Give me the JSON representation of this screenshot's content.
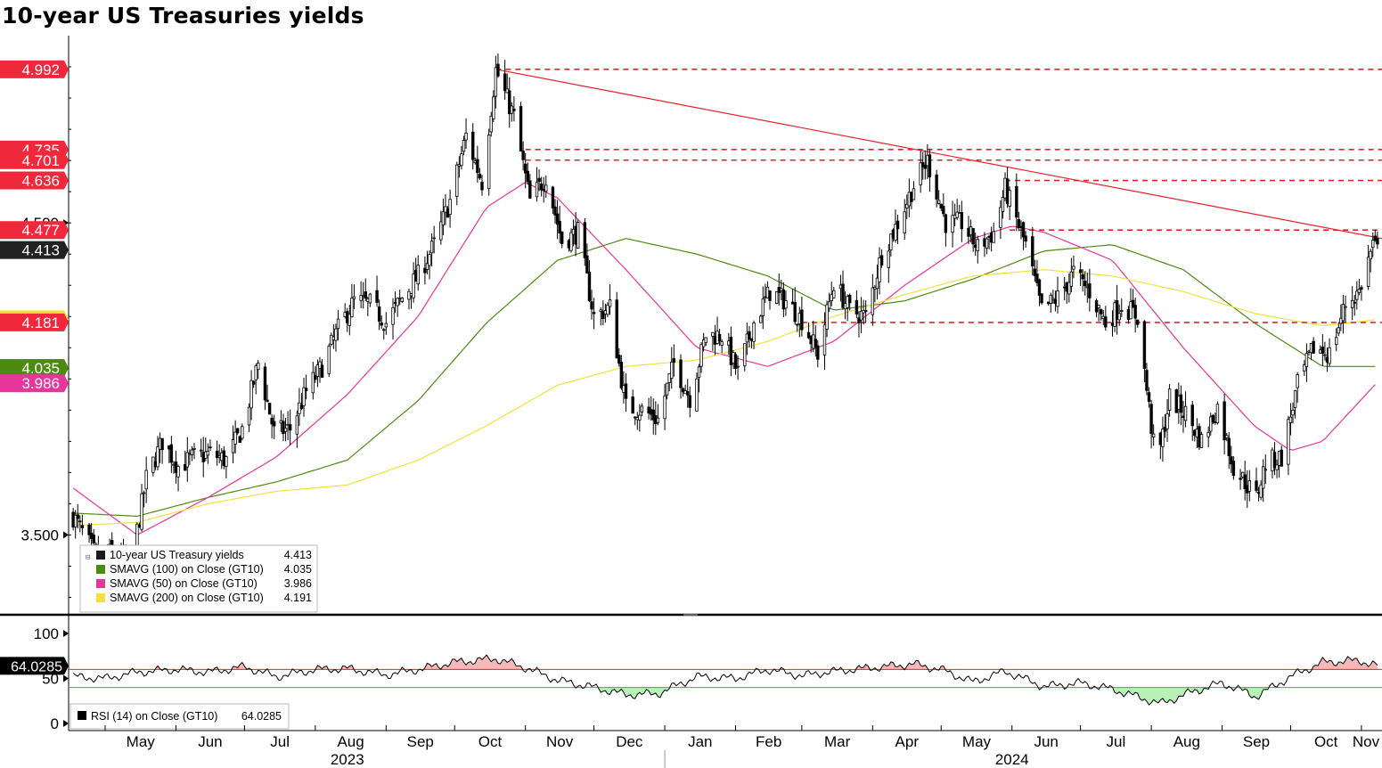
{
  "title": "10-year US Treasuries yields",
  "chart_data": {
    "type": "candlestick",
    "title": "10-year US Treasuries yields",
    "x_range": [
      "2023-04-15",
      "2024-11-10"
    ],
    "x_months": [
      {
        "label": "May",
        "date": "2023-05-01"
      },
      {
        "label": "Jun",
        "date": "2023-06-01"
      },
      {
        "label": "Jul",
        "date": "2023-07-01"
      },
      {
        "label": "Aug",
        "date": "2023-08-01"
      },
      {
        "label": "Sep",
        "date": "2023-09-01"
      },
      {
        "label": "Oct",
        "date": "2023-10-01"
      },
      {
        "label": "Nov",
        "date": "2023-11-01"
      },
      {
        "label": "Dec",
        "date": "2023-12-01"
      },
      {
        "label": "Jan",
        "date": "2024-01-01"
      },
      {
        "label": "Feb",
        "date": "2024-02-01"
      },
      {
        "label": "Mar",
        "date": "2024-03-01"
      },
      {
        "label": "Apr",
        "date": "2024-04-01"
      },
      {
        "label": "May",
        "date": "2024-05-01"
      },
      {
        "label": "Jun",
        "date": "2024-06-01"
      },
      {
        "label": "Jul",
        "date": "2024-07-01"
      },
      {
        "label": "Aug",
        "date": "2024-08-01"
      },
      {
        "label": "Sep",
        "date": "2024-09-01"
      },
      {
        "label": "Oct",
        "date": "2024-10-01"
      },
      {
        "label": "Nov",
        "date": "2024-11-01"
      }
    ],
    "x_years": [
      {
        "label": "2023",
        "date": "2023-08-15"
      },
      {
        "label": "2024",
        "date": "2024-06-01"
      }
    ],
    "year_divider": "2024-01-01",
    "y_range": [
      3.25,
      5.1
    ],
    "y_ticks": [
      {
        "value": 3.5,
        "label": "3.500"
      },
      {
        "value": 4.5,
        "label": "4.500"
      }
    ],
    "price_series": {
      "name": "10-year US Treasury yields",
      "color": "#000000",
      "last": "4.413",
      "points": [
        [
          "2023-04-17",
          3.56
        ],
        [
          "2023-04-28",
          3.42
        ],
        [
          "2023-05-05",
          3.45
        ],
        [
          "2023-05-12",
          3.39
        ],
        [
          "2023-05-19",
          3.68
        ],
        [
          "2023-05-26",
          3.8
        ],
        [
          "2023-06-02",
          3.72
        ],
        [
          "2023-06-09",
          3.75
        ],
        [
          "2023-06-16",
          3.76
        ],
        [
          "2023-06-23",
          3.74
        ],
        [
          "2023-06-30",
          3.84
        ],
        [
          "2023-07-07",
          4.05
        ],
        [
          "2023-07-14",
          3.83
        ],
        [
          "2023-07-21",
          3.84
        ],
        [
          "2023-07-28",
          3.96
        ],
        [
          "2023-08-04",
          4.04
        ],
        [
          "2023-08-11",
          4.16
        ],
        [
          "2023-08-18",
          4.25
        ],
        [
          "2023-08-25",
          4.24
        ],
        [
          "2023-09-01",
          4.18
        ],
        [
          "2023-09-08",
          4.26
        ],
        [
          "2023-09-15",
          4.33
        ],
        [
          "2023-09-22",
          4.43
        ],
        [
          "2023-09-29",
          4.57
        ],
        [
          "2023-10-06",
          4.78
        ],
        [
          "2023-10-13",
          4.63
        ],
        [
          "2023-10-19",
          4.99
        ],
        [
          "2023-10-27",
          4.84
        ],
        [
          "2023-11-03",
          4.57
        ],
        [
          "2023-11-10",
          4.65
        ],
        [
          "2023-11-17",
          4.44
        ],
        [
          "2023-11-24",
          4.47
        ],
        [
          "2023-12-01",
          4.2
        ],
        [
          "2023-12-08",
          4.23
        ],
        [
          "2023-12-15",
          3.91
        ],
        [
          "2023-12-22",
          3.9
        ],
        [
          "2023-12-29",
          3.87
        ],
        [
          "2024-01-05",
          4.05
        ],
        [
          "2024-01-12",
          3.94
        ],
        [
          "2024-01-19",
          4.14
        ],
        [
          "2024-01-26",
          4.14
        ],
        [
          "2024-02-02",
          4.02
        ],
        [
          "2024-02-09",
          4.18
        ],
        [
          "2024-02-16",
          4.28
        ],
        [
          "2024-02-23",
          4.25
        ],
        [
          "2024-03-01",
          4.19
        ],
        [
          "2024-03-08",
          4.08
        ],
        [
          "2024-03-15",
          4.31
        ],
        [
          "2024-03-22",
          4.22
        ],
        [
          "2024-03-29",
          4.2
        ],
        [
          "2024-04-05",
          4.4
        ],
        [
          "2024-04-12",
          4.5
        ],
        [
          "2024-04-19",
          4.62
        ],
        [
          "2024-04-25",
          4.7
        ],
        [
          "2024-05-03",
          4.5
        ],
        [
          "2024-05-10",
          4.5
        ],
        [
          "2024-05-17",
          4.42
        ],
        [
          "2024-05-24",
          4.47
        ],
        [
          "2024-05-29",
          4.61
        ],
        [
          "2024-06-07",
          4.43
        ],
        [
          "2024-06-14",
          4.22
        ],
        [
          "2024-06-21",
          4.26
        ],
        [
          "2024-06-28",
          4.34
        ],
        [
          "2024-07-05",
          4.28
        ],
        [
          "2024-07-12",
          4.18
        ],
        [
          "2024-07-19",
          4.24
        ],
        [
          "2024-07-26",
          4.2
        ],
        [
          "2024-08-02",
          3.79
        ],
        [
          "2024-08-05",
          3.78
        ],
        [
          "2024-08-09",
          3.94
        ],
        [
          "2024-08-16",
          3.89
        ],
        [
          "2024-08-23",
          3.8
        ],
        [
          "2024-08-30",
          3.91
        ],
        [
          "2024-09-06",
          3.72
        ],
        [
          "2024-09-13",
          3.65
        ],
        [
          "2024-09-16",
          3.62
        ],
        [
          "2024-09-20",
          3.73
        ],
        [
          "2024-09-27",
          3.75
        ],
        [
          "2024-10-04",
          3.98
        ],
        [
          "2024-10-11",
          4.1
        ],
        [
          "2024-10-18",
          4.08
        ],
        [
          "2024-10-25",
          4.24
        ],
        [
          "2024-10-31",
          4.28
        ],
        [
          "2024-11-06",
          4.43
        ],
        [
          "2024-11-08",
          4.41
        ]
      ]
    },
    "moving_averages": [
      {
        "name": "SMAVG (100)  on Close (GT10)",
        "value": "4.035",
        "color": "#4d8a10",
        "points": [
          [
            "2023-04-17",
            3.57
          ],
          [
            "2023-05-15",
            3.56
          ],
          [
            "2023-06-15",
            3.62
          ],
          [
            "2023-07-15",
            3.67
          ],
          [
            "2023-08-15",
            3.74
          ],
          [
            "2023-09-15",
            3.93
          ],
          [
            "2023-10-15",
            4.18
          ],
          [
            "2023-11-15",
            4.38
          ],
          [
            "2023-12-15",
            4.45
          ],
          [
            "2024-01-15",
            4.4
          ],
          [
            "2024-02-15",
            4.33
          ],
          [
            "2024-03-15",
            4.22
          ],
          [
            "2024-04-15",
            4.25
          ],
          [
            "2024-05-15",
            4.32
          ],
          [
            "2024-06-15",
            4.41
          ],
          [
            "2024-07-15",
            4.43
          ],
          [
            "2024-08-15",
            4.35
          ],
          [
            "2024-09-15",
            4.18
          ],
          [
            "2024-10-15",
            4.04
          ],
          [
            "2024-11-08",
            4.04
          ]
        ]
      },
      {
        "name": "SMAVG (50)  on Close (GT10)",
        "value": "3.986",
        "color": "#e8359a",
        "points": [
          [
            "2023-04-17",
            3.65
          ],
          [
            "2023-05-15",
            3.5
          ],
          [
            "2023-06-15",
            3.62
          ],
          [
            "2023-07-15",
            3.75
          ],
          [
            "2023-08-15",
            3.95
          ],
          [
            "2023-09-15",
            4.2
          ],
          [
            "2023-10-15",
            4.55
          ],
          [
            "2023-11-01",
            4.63
          ],
          [
            "2023-11-15",
            4.58
          ],
          [
            "2023-12-15",
            4.35
          ],
          [
            "2024-01-15",
            4.1
          ],
          [
            "2024-02-15",
            4.04
          ],
          [
            "2024-03-15",
            4.12
          ],
          [
            "2024-04-15",
            4.3
          ],
          [
            "2024-05-15",
            4.45
          ],
          [
            "2024-06-01",
            4.49
          ],
          [
            "2024-06-15",
            4.47
          ],
          [
            "2024-07-15",
            4.38
          ],
          [
            "2024-08-15",
            4.1
          ],
          [
            "2024-09-15",
            3.85
          ],
          [
            "2024-10-01",
            3.77
          ],
          [
            "2024-10-15",
            3.8
          ],
          [
            "2024-11-08",
            3.99
          ]
        ]
      },
      {
        "name": "SMAVG (200)  on Close (GT10)",
        "value": "4.191",
        "color": "#f5e13a",
        "points": [
          [
            "2023-04-17",
            3.53
          ],
          [
            "2023-05-15",
            3.54
          ],
          [
            "2023-06-15",
            3.6
          ],
          [
            "2023-07-15",
            3.64
          ],
          [
            "2023-08-15",
            3.66
          ],
          [
            "2023-09-15",
            3.74
          ],
          [
            "2023-10-15",
            3.85
          ],
          [
            "2023-11-15",
            3.98
          ],
          [
            "2023-12-15",
            4.04
          ],
          [
            "2024-01-15",
            4.06
          ],
          [
            "2024-02-15",
            4.12
          ],
          [
            "2024-03-15",
            4.2
          ],
          [
            "2024-04-15",
            4.27
          ],
          [
            "2024-05-15",
            4.33
          ],
          [
            "2024-06-15",
            4.35
          ],
          [
            "2024-07-15",
            4.33
          ],
          [
            "2024-08-15",
            4.28
          ],
          [
            "2024-09-15",
            4.21
          ],
          [
            "2024-10-15",
            4.17
          ],
          [
            "2024-11-08",
            4.19
          ]
        ]
      }
    ],
    "resistance_lines": [
      {
        "value": 4.992,
        "label": "4.992",
        "start": "2023-10-19"
      },
      {
        "value": 4.735,
        "label": "4.735",
        "start": "2023-11-01"
      },
      {
        "value": 4.701,
        "label": "4.701",
        "start": "2023-11-01"
      },
      {
        "value": 4.636,
        "label": "4.636",
        "start": "2024-05-29"
      },
      {
        "value": 4.477,
        "label": "4.477",
        "start": "2024-05-31"
      },
      {
        "value": 4.181,
        "label": "4.181",
        "start": "2024-03-01"
      }
    ],
    "trendline": {
      "start": [
        "2023-10-19",
        4.992
      ],
      "end": [
        "2024-11-10",
        4.45
      ],
      "color": "#e8202a"
    },
    "price_labels": [
      {
        "value": 4.992,
        "label": "4.992",
        "color": "#f0283c"
      },
      {
        "value": 4.735,
        "label": "4.735",
        "color": "#f0283c"
      },
      {
        "value": 4.701,
        "label": "4.701",
        "color": "#f0283c"
      },
      {
        "value": 4.636,
        "label": "4.636",
        "color": "#f0283c"
      },
      {
        "value": 4.477,
        "label": "4.477",
        "color": "#f0283c"
      },
      {
        "value": 4.413,
        "label": "4.413",
        "color": "#222222"
      },
      {
        "value": 4.191,
        "label": "",
        "color": "#f5e13a"
      },
      {
        "value": 4.181,
        "label": "4.181",
        "color": "#f0283c"
      },
      {
        "value": 4.035,
        "label": "4.035",
        "color": "#4d8a10"
      },
      {
        "value": 3.986,
        "label": "3.986",
        "color": "#e8359a"
      }
    ],
    "legend": {
      "placement": "bottom-left",
      "items": [
        {
          "name": "10-year US Treasury yields",
          "value": "4.413",
          "color": "#1a1a1a"
        },
        {
          "name": "SMAVG (100)  on Close (GT10)",
          "value": "4.035",
          "color": "#4d8a10"
        },
        {
          "name": "SMAVG (50)  on Close (GT10)",
          "value": "3.986",
          "color": "#e8359a"
        },
        {
          "name": "SMAVG (200)  on Close (GT10)",
          "value": "4.191",
          "color": "#f5e13a"
        }
      ]
    },
    "rsi": {
      "name": "RSI (14)  on Close (GT10)",
      "value": "64.0285",
      "y_range": [
        0,
        100
      ],
      "y_ticks": [
        {
          "value": 100,
          "label": "100"
        },
        {
          "value": 50,
          "label": "50"
        },
        {
          "value": 0,
          "label": "0"
        }
      ],
      "overbought": 60,
      "oversold": 40,
      "points": [
        [
          "2023-04-17",
          52
        ],
        [
          "2023-05-01",
          50
        ],
        [
          "2023-05-15",
          57
        ],
        [
          "2023-06-01",
          60
        ],
        [
          "2023-06-15",
          57
        ],
        [
          "2023-07-01",
          63
        ],
        [
          "2023-07-15",
          52
        ],
        [
          "2023-08-01",
          60
        ],
        [
          "2023-08-15",
          61
        ],
        [
          "2023-09-01",
          54
        ],
        [
          "2023-09-15",
          60
        ],
        [
          "2023-10-01",
          68
        ],
        [
          "2023-10-19",
          72
        ],
        [
          "2023-11-01",
          62
        ],
        [
          "2023-11-15",
          48
        ],
        [
          "2023-12-01",
          40
        ],
        [
          "2023-12-15",
          32
        ],
        [
          "2023-12-29",
          33
        ],
        [
          "2024-01-15",
          52
        ],
        [
          "2024-02-01",
          50
        ],
        [
          "2024-02-15",
          60
        ],
        [
          "2024-03-01",
          53
        ],
        [
          "2024-03-15",
          58
        ],
        [
          "2024-04-01",
          62
        ],
        [
          "2024-04-19",
          66
        ],
        [
          "2024-05-01",
          60
        ],
        [
          "2024-05-15",
          46
        ],
        [
          "2024-05-29",
          58
        ],
        [
          "2024-06-15",
          41
        ],
        [
          "2024-07-01",
          45
        ],
        [
          "2024-07-15",
          38
        ],
        [
          "2024-08-05",
          22
        ],
        [
          "2024-08-20",
          36
        ],
        [
          "2024-09-01",
          45
        ],
        [
          "2024-09-16",
          30
        ],
        [
          "2024-10-01",
          52
        ],
        [
          "2024-10-15",
          68
        ],
        [
          "2024-10-31",
          70
        ],
        [
          "2024-11-08",
          64
        ]
      ]
    }
  }
}
